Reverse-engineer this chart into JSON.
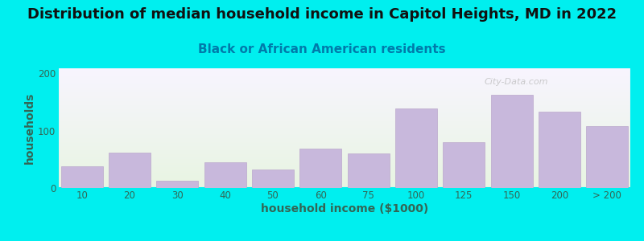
{
  "title": "Distribution of median household income in Capitol Heights, MD in 2022",
  "subtitle": "Black or African American residents",
  "xlabel": "household income ($1000)",
  "ylabel": "households",
  "bar_color": "#C8B8DC",
  "bar_edge_color": "#BBA8CC",
  "background_color": "#00EFEF",
  "plot_bg_gradient_top": "#F8F4FF",
  "plot_bg_gradient_bottom": "#E8F5E2",
  "categories": [
    "10",
    "20",
    "30",
    "40",
    "50",
    "60",
    "75",
    "100",
    "125",
    "150",
    "200",
    "> 200"
  ],
  "values": [
    38,
    62,
    13,
    45,
    32,
    68,
    60,
    138,
    80,
    163,
    133,
    108
  ],
  "ylim": [
    0,
    210
  ],
  "yticks": [
    0,
    100,
    200
  ],
  "title_fontsize": 13,
  "subtitle_fontsize": 11,
  "axis_label_fontsize": 10,
  "tick_fontsize": 8.5,
  "watermark_text": "City-Data.com",
  "title_color": "#111111",
  "subtitle_color": "#007BAA",
  "axis_label_color": "#336655",
  "tick_color": "#336655"
}
